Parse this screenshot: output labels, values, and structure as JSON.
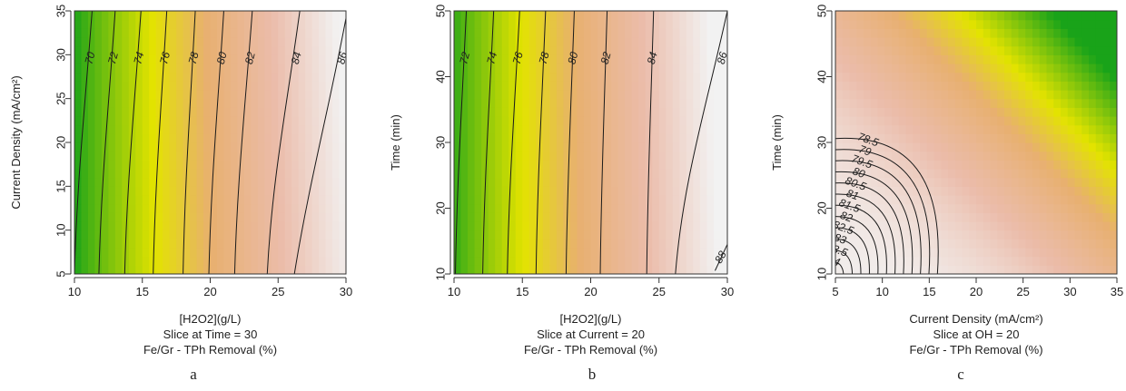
{
  "chart_data": [
    {
      "type": "contour",
      "panel_label": "a",
      "xlabel": "[H2O2](g/L)",
      "ylabel": "Current Density (mA/cm²)",
      "slice_text": "Slice at Time = 30",
      "response_text": "Fe/Gr - TPh Removal (%)",
      "xlim": [
        10,
        30
      ],
      "ylim": [
        5,
        35
      ],
      "xticks": [
        10,
        15,
        20,
        25,
        30
      ],
      "yticks": [
        5,
        10,
        15,
        20,
        25,
        30,
        35
      ],
      "zlim": [
        66,
        88
      ],
      "contours": [
        {
          "level": "70",
          "x_low": 10.0,
          "x_high": 11.3
        },
        {
          "level": "72",
          "x_low": 11.8,
          "x_high": 13.0
        },
        {
          "level": "74",
          "x_low": 13.7,
          "x_high": 14.9
        },
        {
          "level": "76",
          "x_low": 15.8,
          "x_high": 16.8
        },
        {
          "level": "78",
          "x_low": 18.0,
          "x_high": 18.9
        },
        {
          "level": "80",
          "x_low": 19.9,
          "x_high": 21.0
        },
        {
          "level": "82",
          "x_low": 21.8,
          "x_high": 23.1
        },
        {
          "level": "84",
          "x_low": 24.2,
          "x_high": 26.6
        },
        {
          "level": "86",
          "x_low": 26.2,
          "x_high": 30.1,
          "bulge": 0.7
        }
      ]
    },
    {
      "type": "contour",
      "panel_label": "b",
      "xlabel": "[H2O2](g/L)",
      "ylabel": "Time (min)",
      "slice_text": "Slice at Current = 20",
      "response_text": "Fe/Gr - TPh Removal (%)",
      "xlim": [
        10,
        30
      ],
      "ylim": [
        10,
        50
      ],
      "xticks": [
        10,
        15,
        20,
        25,
        30
      ],
      "yticks": [
        10,
        20,
        30,
        40,
        50
      ],
      "zlim": [
        66,
        90
      ],
      "contours": [
        {
          "level": "72",
          "x_low": 10.1,
          "x_high": 10.9
        },
        {
          "level": "74",
          "x_low": 12.1,
          "x_high": 12.9
        },
        {
          "level": "76",
          "x_low": 13.9,
          "x_high": 14.8
        },
        {
          "level": "78",
          "x_low": 16.0,
          "x_high": 16.7
        },
        {
          "level": "80",
          "x_low": 18.2,
          "x_high": 18.8
        },
        {
          "level": "82",
          "x_low": 20.7,
          "x_high": 21.2
        },
        {
          "level": "84",
          "x_low": 24.1,
          "x_high": 24.6
        },
        {
          "level": "86",
          "x_low": 26.2,
          "x_high": 30.0
        },
        {
          "level": "88",
          "x_low": 29.1,
          "x_high": 30.0,
          "short": true
        }
      ]
    },
    {
      "type": "contour",
      "panel_label": "c",
      "xlabel": "Current Density (mA/cm²)",
      "ylabel": "Time (min)",
      "slice_text": "Slice at OH = 20",
      "response_text": "Fe/Gr - TPh Removal (%)",
      "xlim": [
        5,
        35
      ],
      "ylim": [
        10,
        50
      ],
      "xticks": [
        5,
        10,
        15,
        20,
        25,
        30,
        35
      ],
      "yticks": [
        10,
        20,
        30,
        40,
        50
      ],
      "zlim": [
        77,
        85
      ],
      "contours": [
        {
          "level": "84",
          "value": 84.0
        },
        {
          "level": "83.5",
          "value": 83.5
        },
        {
          "level": "83",
          "value": 83.0
        },
        {
          "level": "82.5",
          "value": 82.5
        },
        {
          "level": "82",
          "value": 82.0
        },
        {
          "level": "81.5",
          "value": 81.5
        },
        {
          "level": "81",
          "value": 81.0
        },
        {
          "level": "80.5",
          "value": 80.5
        },
        {
          "level": "80",
          "value": 80.0
        },
        {
          "level": "79.5",
          "value": 79.5
        },
        {
          "level": "79",
          "value": 79.0
        },
        {
          "level": "78.5",
          "value": 78.5
        }
      ]
    }
  ],
  "colors": {
    "low": "#19a319",
    "mid_low": "#e3e300",
    "mid": "#e8b070",
    "mid_high": "#ebbcaa",
    "high": "#f2f2f2",
    "line": "#1a1a1a"
  }
}
